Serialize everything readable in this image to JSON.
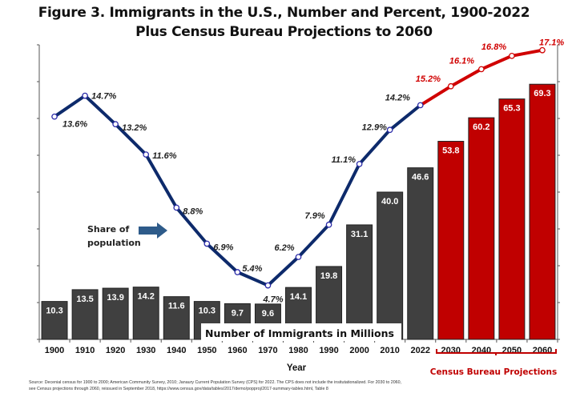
{
  "chart_data": {
    "type": "bar",
    "title": "Figure 3. Immigrants in the U.S., Number and Percent, 1900-2022",
    "subtitle": "Plus Census Bureau Projections to 2060",
    "xlabel": "Year",
    "ylabel": "",
    "categories": [
      "1900",
      "1910",
      "1920",
      "1930",
      "1940",
      "1950",
      "1960",
      "1970",
      "1980",
      "1990",
      "2000",
      "2010",
      "2022",
      "2030",
      "2040",
      "2050",
      "2060"
    ],
    "ylim_bars": [
      0,
      80
    ],
    "grid": false,
    "series": [
      {
        "name": "Number of Immigrants in Millions",
        "type": "bar",
        "values": [
          10.3,
          13.5,
          13.9,
          14.2,
          11.6,
          10.3,
          9.7,
          9.6,
          14.1,
          19.8,
          31.1,
          40.0,
          46.6,
          53.8,
          60.2,
          65.3,
          69.3
        ],
        "labels": [
          "10.3",
          "13.5",
          "13.9",
          "14.2",
          "11.6",
          "10.3",
          "9.7",
          "9.6",
          "14.1",
          "19.8",
          "31.1",
          "40.0",
          "46.6",
          "53.8",
          "60.2",
          "65.3",
          "69.3"
        ],
        "projected_from_index": 13,
        "color_actual": "#404040",
        "color_projected": "#c00000"
      },
      {
        "name": "Share of population",
        "type": "line",
        "values": [
          13.6,
          14.7,
          13.2,
          11.6,
          8.8,
          6.9,
          5.4,
          4.7,
          6.2,
          7.9,
          11.1,
          12.9,
          14.2,
          15.2,
          16.1,
          16.8,
          17.1
        ],
        "labels": [
          "13.6%",
          "14.7%",
          "13.2%",
          "11.6%",
          "8.8%",
          "6.9%",
          "5.4%",
          "4.7%",
          "6.2%",
          "7.9%",
          "11.1%",
          "12.9%",
          "14.2%",
          "15.2%",
          "16.1%",
          "16.8%",
          "17.1%"
        ],
        "projected_from_index": 12,
        "color_actual": "#0d2a6b",
        "color_projected": "#d00000"
      }
    ],
    "annotations": {
      "bar_series_label": "Number of Immigrants in Millions",
      "line_series_label_line1": "Share of",
      "line_series_label_line2": "population",
      "projection_bracket_label": "Census Bureau Projections"
    },
    "legend": "none"
  },
  "source_line1": "Source: Decenial census for 1900 to 2000; American Community Survey, 2010; Janaury Current Population Survey (CPS) for 2022. The CPS does not include the insitutationalized. For 2030 to 2060,",
  "source_line2": "see Census projections through 2060, reissued in September 2018, https://www.census.gov/data/tables/2017/demo/popproj/2017-summary-tables.html, Table 8",
  "colors": {
    "arrow": "#2e5b8a",
    "projection_text": "#c00000"
  }
}
